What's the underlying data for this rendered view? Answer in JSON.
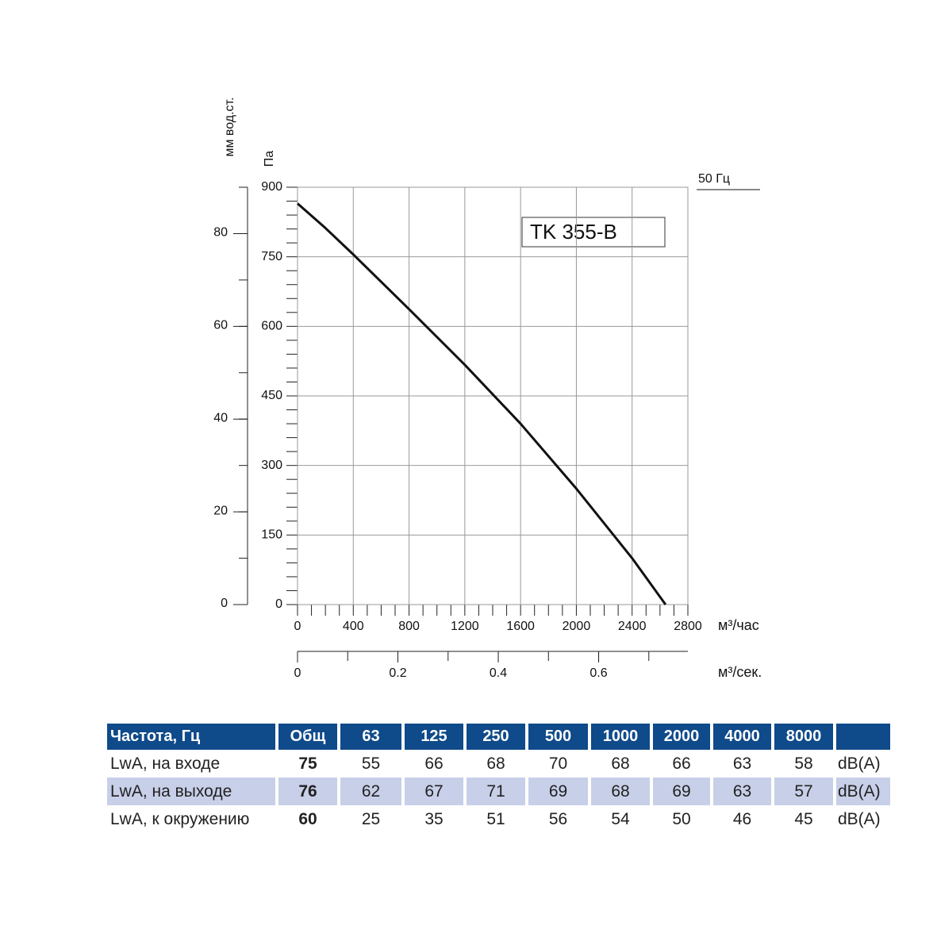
{
  "chart_data": {
    "type": "line",
    "title": "TK 355-B",
    "frequency": "50 Гц",
    "y_label": "Па",
    "y2_label": "мм вод.ст.",
    "x_label": "м³/час",
    "x2_label": "м³/сек.",
    "x": [
      0,
      200,
      400,
      800,
      1200,
      1600,
      2000,
      2400,
      2640
    ],
    "series": [
      {
        "color": "#111111",
        "values": [
          865,
          812,
          755,
          637,
          517,
          390,
          250,
          100,
          0
        ]
      }
    ],
    "xlim": [
      0,
      2800
    ],
    "xticks": [
      0,
      400,
      800,
      1200,
      1600,
      2000,
      2400,
      2800
    ],
    "ylim": [
      0,
      900
    ],
    "yticks": [
      0,
      150,
      300,
      450,
      600,
      750,
      900
    ],
    "y2lim": [
      0,
      90
    ],
    "y2ticks": [
      0,
      20,
      40,
      60,
      80
    ],
    "x2lim": [
      0,
      0.7778
    ],
    "x2ticks": [
      0,
      0.2,
      0.4,
      0.6
    ],
    "grid": true
  },
  "table": {
    "header": [
      "Частота, Гц",
      "Общ",
      "63",
      "125",
      "250",
      "500",
      "1000",
      "2000",
      "4000",
      "8000",
      ""
    ],
    "rows": [
      [
        "LwA, на входе",
        75,
        55,
        66,
        68,
        70,
        68,
        66,
        63,
        58,
        "dB(A)"
      ],
      [
        "LwA, на выходе",
        76,
        62,
        67,
        71,
        69,
        68,
        69,
        63,
        57,
        "dB(A)"
      ],
      [
        "LwA, к окружению",
        60,
        25,
        35,
        51,
        56,
        54,
        50,
        46,
        45,
        "dB(A)"
      ]
    ]
  }
}
